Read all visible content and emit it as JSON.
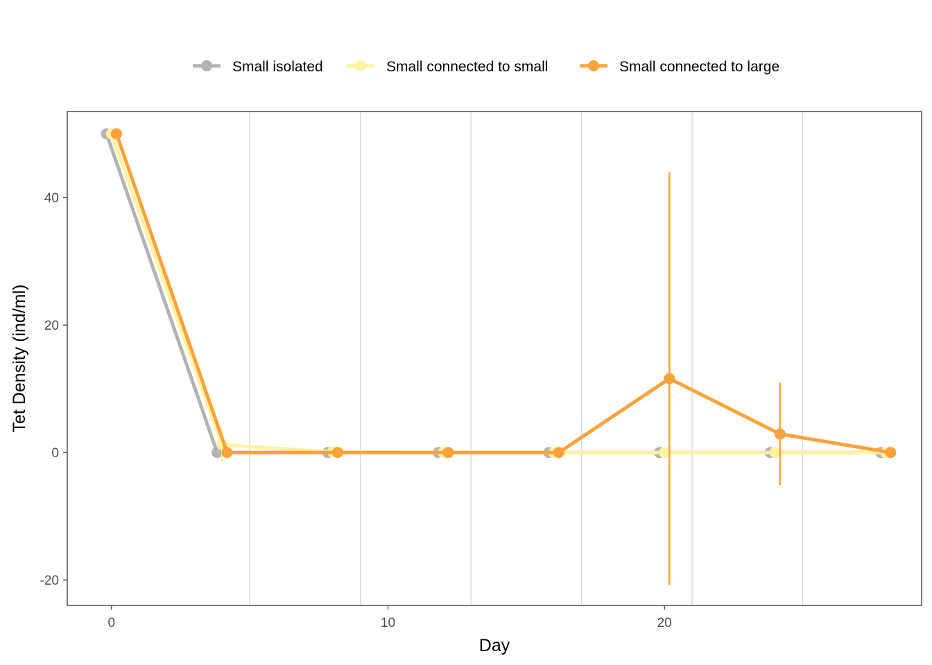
{
  "chart_data": {
    "type": "line",
    "title": "",
    "xlabel": "Day",
    "ylabel": "Tet Density (ind/ml)",
    "xlim": [
      -1.6,
      29.3
    ],
    "ylim": [
      -24,
      53.5
    ],
    "x_ticks": [
      0,
      10,
      20
    ],
    "y_ticks": [
      -20,
      0,
      20,
      40
    ],
    "x_gridlines": [
      5,
      9,
      13,
      17,
      21,
      25
    ],
    "grid": "vertical minor lines only",
    "legend_position": "top",
    "series": [
      {
        "name": "Small isolated",
        "color": "#b3b3b3",
        "dodge": -0.18,
        "x": [
          0,
          4,
          8,
          12,
          16,
          20,
          24,
          28
        ],
        "y": [
          50,
          0,
          0,
          0,
          0,
          0,
          0,
          0
        ],
        "error": [
          null,
          null,
          null,
          null,
          null,
          null,
          null,
          null
        ]
      },
      {
        "name": "Small connected to small",
        "color": "#fff2a0",
        "dodge": 0.0,
        "x": [
          0,
          4,
          8,
          12,
          16,
          20,
          24,
          28
        ],
        "y": [
          50,
          1.2,
          0.1,
          0,
          0,
          0,
          0,
          0
        ],
        "error": [
          null,
          [
            -1.5,
            3.8
          ],
          null,
          null,
          null,
          null,
          null,
          null
        ]
      },
      {
        "name": "Small connected to large",
        "color": "#f9a23a",
        "dodge": 0.18,
        "x": [
          0,
          4,
          8,
          12,
          16,
          20,
          24,
          28
        ],
        "y": [
          50,
          0,
          0,
          0,
          0,
          11.6,
          2.9,
          0
        ],
        "error": [
          null,
          null,
          null,
          null,
          null,
          [
            -20.8,
            44
          ],
          [
            -5.1,
            11
          ],
          null
        ]
      }
    ]
  }
}
